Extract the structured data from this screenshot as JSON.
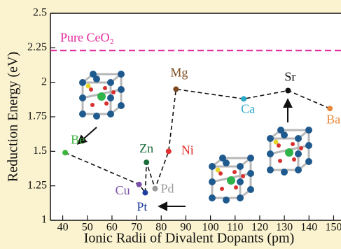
{
  "chart_data": {
    "type": "scatter",
    "x_label": "Ionic Radii of Divalent Dopants (pm)",
    "y_label": "Reduction Energy (eV)",
    "xlim": [
      35,
      153
    ],
    "ylim": [
      1,
      2.5
    ],
    "xticks": [
      40,
      50,
      60,
      70,
      80,
      90,
      100,
      110,
      120,
      130,
      140,
      150
    ],
    "yticks": [
      1,
      1.25,
      1.5,
      1.75,
      2,
      2.25,
      2.5
    ],
    "reference_line": {
      "label": "Pure CeO₂",
      "value": 2.23,
      "color": "#e0259a"
    },
    "line_style": "dashed",
    "labels": [
      "Be",
      "Cu",
      "Pt",
      "Zn",
      "Pd",
      "Ni",
      "Mg",
      "Ca",
      "Sr",
      "Ba"
    ],
    "x": [
      41,
      71,
      73.5,
      74,
      77.5,
      83,
      86,
      113.5,
      131.5,
      148.5
    ],
    "values": [
      1.49,
      1.26,
      1.2,
      1.42,
      1.23,
      1.5,
      1.95,
      1.88,
      1.94,
      1.81
    ],
    "colors": [
      "#3db43d",
      "#7a4fa6",
      "#1f3f9e",
      "#1a6b3a",
      "#9a9a9a",
      "#e53030",
      "#7a4a1e",
      "#2aa8c8",
      "#111111",
      "#e8873a"
    ]
  }
}
